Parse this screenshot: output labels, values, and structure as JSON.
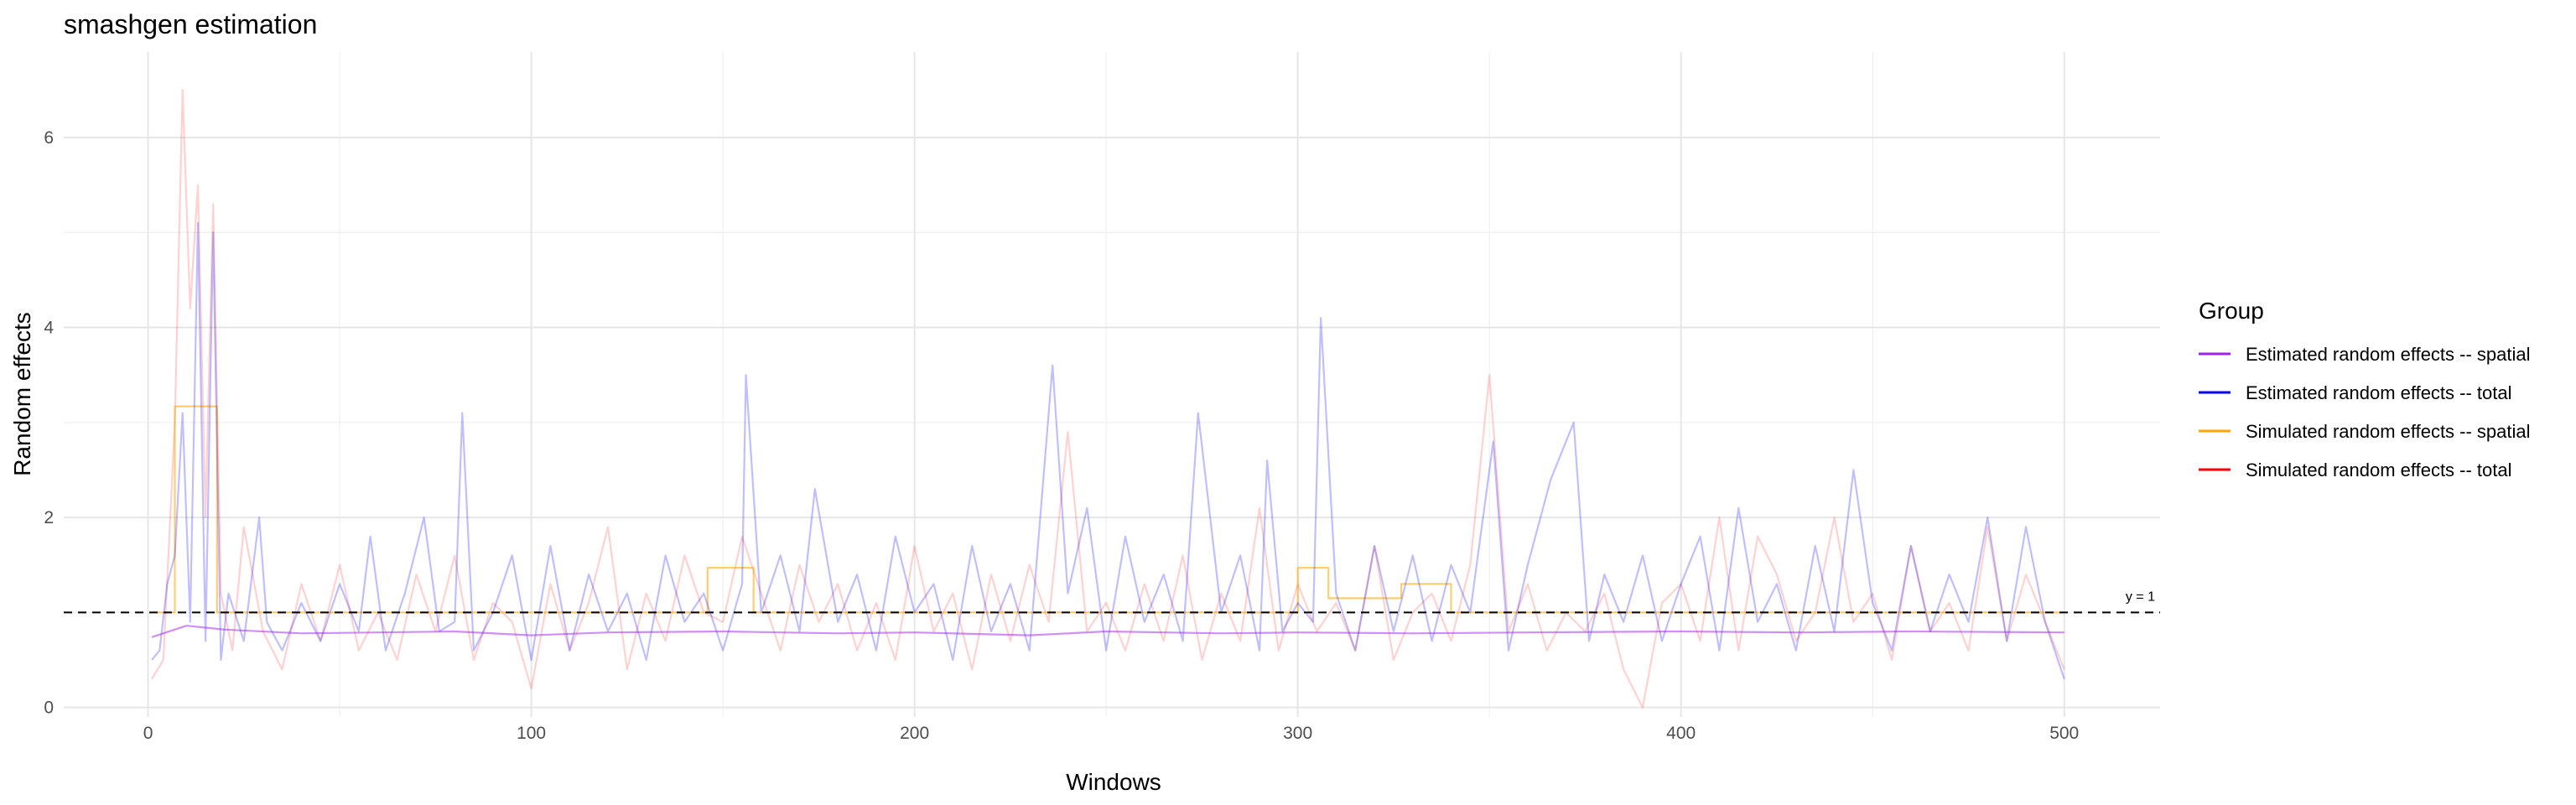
{
  "chart_data": {
    "type": "line",
    "title": "smashgen estimation",
    "xlabel": "Windows",
    "ylabel": "Random effects",
    "xlim": [
      -22,
      525
    ],
    "ylim": [
      -0.1,
      6.9
    ],
    "x_ticks": [
      0,
      100,
      200,
      300,
      400,
      500
    ],
    "y_ticks": [
      0,
      2,
      4,
      6
    ],
    "grid": true,
    "legend_title": "Group",
    "legend_position": "right",
    "colors": {
      "estimated_spatial": "#a020f0",
      "estimated_total": "#0000ff",
      "simulated_spatial": "#ffa500",
      "simulated_total": "#ff0000"
    },
    "reference_line": {
      "y": 1,
      "label": "y = 1",
      "style": "dashed"
    },
    "series": [
      {
        "name": "Estimated random effects -- spatial",
        "style": "smoothed line",
        "x": [
          1,
          10,
          20,
          40,
          60,
          80,
          100,
          120,
          150,
          180,
          200,
          230,
          250,
          280,
          300,
          330,
          360,
          400,
          430,
          460,
          500
        ],
        "y": [
          0.74,
          0.86,
          0.82,
          0.78,
          0.79,
          0.8,
          0.76,
          0.79,
          0.8,
          0.78,
          0.79,
          0.76,
          0.8,
          0.78,
          0.79,
          0.78,
          0.79,
          0.8,
          0.79,
          0.8,
          0.79
        ]
      },
      {
        "name": "Estimated random effects -- total",
        "style": "line",
        "x": [
          1,
          3,
          5,
          7,
          9,
          11,
          13,
          15,
          17,
          19,
          21,
          25,
          29,
          31,
          35,
          40,
          45,
          50,
          55,
          58,
          62,
          67,
          72,
          76,
          80,
          82,
          85,
          90,
          95,
          100,
          105,
          110,
          115,
          120,
          125,
          130,
          135,
          140,
          145,
          150,
          155,
          156,
          160,
          165,
          170,
          174,
          180,
          185,
          190,
          195,
          200,
          205,
          210,
          215,
          220,
          225,
          230,
          236,
          240,
          245,
          250,
          255,
          260,
          265,
          270,
          274,
          280,
          285,
          290,
          292,
          296,
          300,
          304,
          306,
          310,
          315,
          320,
          325,
          330,
          335,
          340,
          345,
          351,
          355,
          360,
          366,
          372,
          376,
          380,
          385,
          390,
          395,
          400,
          405,
          410,
          415,
          420,
          425,
          430,
          435,
          440,
          445,
          450,
          455,
          460,
          465,
          470,
          475,
          480,
          485,
          490,
          495,
          500
        ],
        "y": [
          0.5,
          0.6,
          1.3,
          1.6,
          3.1,
          0.9,
          5.1,
          0.7,
          5.0,
          0.5,
          1.2,
          0.7,
          2.0,
          0.9,
          0.6,
          1.1,
          0.7,
          1.3,
          0.8,
          1.8,
          0.6,
          1.2,
          2.0,
          0.8,
          0.9,
          3.1,
          0.6,
          1.0,
          1.6,
          0.5,
          1.7,
          0.6,
          1.4,
          0.8,
          1.2,
          0.5,
          1.6,
          0.9,
          1.2,
          0.6,
          1.3,
          3.5,
          1.0,
          1.6,
          0.8,
          2.3,
          0.9,
          1.4,
          0.6,
          1.8,
          1.0,
          1.3,
          0.5,
          1.7,
          0.8,
          1.3,
          0.6,
          3.6,
          1.2,
          2.1,
          0.6,
          1.8,
          0.9,
          1.4,
          0.7,
          3.1,
          1.0,
          1.6,
          0.6,
          2.6,
          0.8,
          1.1,
          0.9,
          4.1,
          1.2,
          0.6,
          1.7,
          0.8,
          1.6,
          0.7,
          1.5,
          1.0,
          2.8,
          0.6,
          1.5,
          2.4,
          3.0,
          0.7,
          1.4,
          0.9,
          1.6,
          0.7,
          1.3,
          1.8,
          0.6,
          2.1,
          0.9,
          1.3,
          0.6,
          1.7,
          0.8,
          2.5,
          1.1,
          0.6,
          1.7,
          0.8,
          1.4,
          0.9,
          2.0,
          0.7,
          1.9,
          0.9,
          0.3
        ]
      },
      {
        "name": "Simulated random effects -- spatial",
        "style": "step",
        "x": [
          1,
          7,
          7,
          18,
          18,
          146,
          146,
          158,
          158,
          300,
          300,
          308,
          308,
          327,
          327,
          340,
          340,
          500
        ],
        "y": [
          1.0,
          1.0,
          3.17,
          3.17,
          1.0,
          1.0,
          1.47,
          1.47,
          1.0,
          1.0,
          1.47,
          1.47,
          1.15,
          1.15,
          1.3,
          1.3,
          1.0,
          1.0
        ]
      },
      {
        "name": "Simulated random effects -- total",
        "style": "line",
        "x": [
          1,
          4,
          7,
          9,
          11,
          13,
          15,
          17,
          19,
          22,
          25,
          30,
          35,
          40,
          45,
          50,
          55,
          60,
          65,
          70,
          75,
          80,
          85,
          90,
          95,
          100,
          105,
          110,
          115,
          120,
          125,
          130,
          135,
          140,
          145,
          150,
          155,
          160,
          165,
          170,
          175,
          180,
          185,
          190,
          195,
          200,
          205,
          210,
          215,
          220,
          225,
          230,
          235,
          240,
          245,
          250,
          255,
          260,
          265,
          270,
          275,
          280,
          285,
          290,
          295,
          300,
          305,
          310,
          315,
          320,
          325,
          330,
          335,
          340,
          345,
          350,
          355,
          360,
          365,
          370,
          375,
          380,
          385,
          390,
          395,
          400,
          405,
          410,
          415,
          420,
          425,
          430,
          435,
          440,
          445,
          450,
          455,
          460,
          465,
          470,
          475,
          480,
          485,
          490,
          495,
          500
        ],
        "y": [
          0.3,
          0.5,
          3.0,
          6.5,
          4.2,
          5.5,
          2.0,
          5.3,
          1.2,
          0.6,
          1.9,
          0.8,
          0.4,
          1.3,
          0.7,
          1.5,
          0.6,
          1.0,
          0.5,
          1.4,
          0.8,
          1.6,
          0.5,
          1.1,
          0.9,
          0.2,
          1.3,
          0.6,
          1.1,
          1.9,
          0.4,
          1.2,
          0.7,
          1.6,
          1.0,
          0.9,
          1.8,
          1.2,
          0.6,
          1.5,
          0.9,
          1.3,
          0.6,
          1.1,
          0.5,
          1.7,
          0.8,
          1.2,
          0.4,
          1.4,
          0.7,
          1.5,
          0.9,
          2.9,
          0.8,
          1.1,
          0.6,
          1.3,
          0.7,
          1.6,
          0.5,
          1.2,
          0.7,
          2.1,
          0.6,
          1.3,
          0.8,
          1.1,
          0.6,
          1.7,
          0.5,
          1.0,
          1.2,
          0.7,
          1.5,
          3.5,
          0.8,
          1.3,
          0.6,
          1.0,
          0.8,
          1.2,
          0.4,
          0.0,
          1.1,
          1.3,
          0.7,
          2.0,
          0.6,
          1.8,
          1.4,
          0.7,
          1.0,
          2.0,
          0.9,
          1.2,
          0.5,
          1.7,
          0.8,
          1.1,
          0.6,
          1.9,
          0.7,
          1.4,
          0.9,
          0.4
        ]
      }
    ]
  }
}
